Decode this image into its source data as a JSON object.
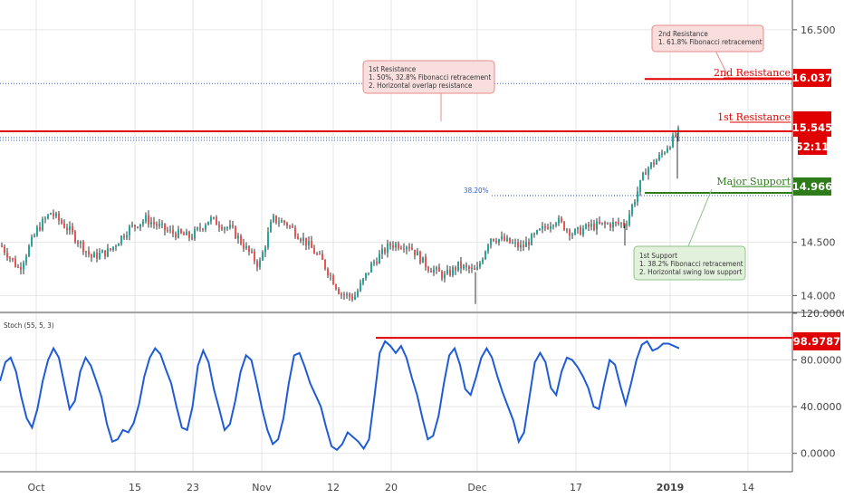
{
  "colors": {
    "up": "#26a69a",
    "down": "#ef5350",
    "resistance": "#e00000",
    "support": "#2e7d1a",
    "stoch": "#1e5bd6",
    "grid": "#e6e6e6",
    "dotted": "#2f5fcf",
    "red_box_bg": "#f9dede",
    "red_box_border": "#e98b8b",
    "green_box_bg": "#e1f1dc",
    "green_box_border": "#8fc48a"
  },
  "chart_data": [
    {
      "type": "candlestick",
      "x_ticks": [
        "Oct",
        "15",
        "23",
        "Nov",
        "12",
        "20",
        "Dec",
        "17",
        "2019",
        "14"
      ],
      "y_ticks": [
        "14.000",
        "14.500",
        "16.500"
      ],
      "ylim": [
        13.85,
        16.78
      ],
      "levels": {
        "second_resistance": {
          "label": "2nd Resistance",
          "value": "16.037"
        },
        "first_resistance": {
          "label": "1st Resistance",
          "value": "15.545"
        },
        "major_support": {
          "label": "Major Support",
          "value": "14.966"
        }
      },
      "current_price": "15.545",
      "countdown": "52:11",
      "fib_label": "38.20%",
      "annotations": {
        "second_resistance": [
          "2nd Resistance",
          "1. 61.8% Fibonacci retracement"
        ],
        "first_resistance": [
          "1st Resistance",
          "1. 50%, 32.8% Fibonacci retracement",
          "2. Horizontal overlap resistance"
        ],
        "support": [
          "1st Support",
          "1. 38.2% Fibonacci retracement",
          "2. Horizontal swing low support"
        ]
      }
    },
    {
      "type": "line",
      "title": "Stoch (55, 5, 3)",
      "y_ticks": [
        "120.0000",
        "80.0000",
        "40.0000",
        "0.0000"
      ],
      "ylim": [
        -15,
        120
      ],
      "resistance_value": "98.9787",
      "series": [
        {
          "values": [
            62,
            78,
            82,
            70,
            48,
            30,
            22,
            38,
            62,
            80,
            90,
            82,
            60,
            38,
            45,
            70,
            82,
            75,
            62,
            48,
            25,
            10,
            12,
            20,
            18,
            26,
            42,
            66,
            82,
            90,
            85,
            72,
            60,
            40,
            22,
            20,
            40,
            75,
            88,
            78,
            55,
            38,
            20,
            25,
            45,
            70,
            84,
            80,
            60,
            38,
            20,
            8,
            12,
            30,
            60,
            84,
            86,
            74,
            60,
            50,
            40,
            22,
            6,
            3,
            8,
            18,
            14,
            10,
            4,
            12,
            48,
            86,
            96,
            92,
            86,
            92,
            82,
            65,
            50,
            30,
            12,
            15,
            32,
            60,
            84,
            90,
            76,
            55,
            50,
            65,
            82,
            90,
            82,
            66,
            52,
            40,
            28,
            10,
            18,
            48,
            78,
            86,
            78,
            56,
            50,
            70,
            82,
            80,
            74,
            66,
            56,
            40,
            38,
            60,
            80,
            76,
            58,
            42,
            60,
            80,
            93,
            96,
            88,
            90,
            94,
            94,
            92,
            90
          ]
        }
      ]
    }
  ]
}
